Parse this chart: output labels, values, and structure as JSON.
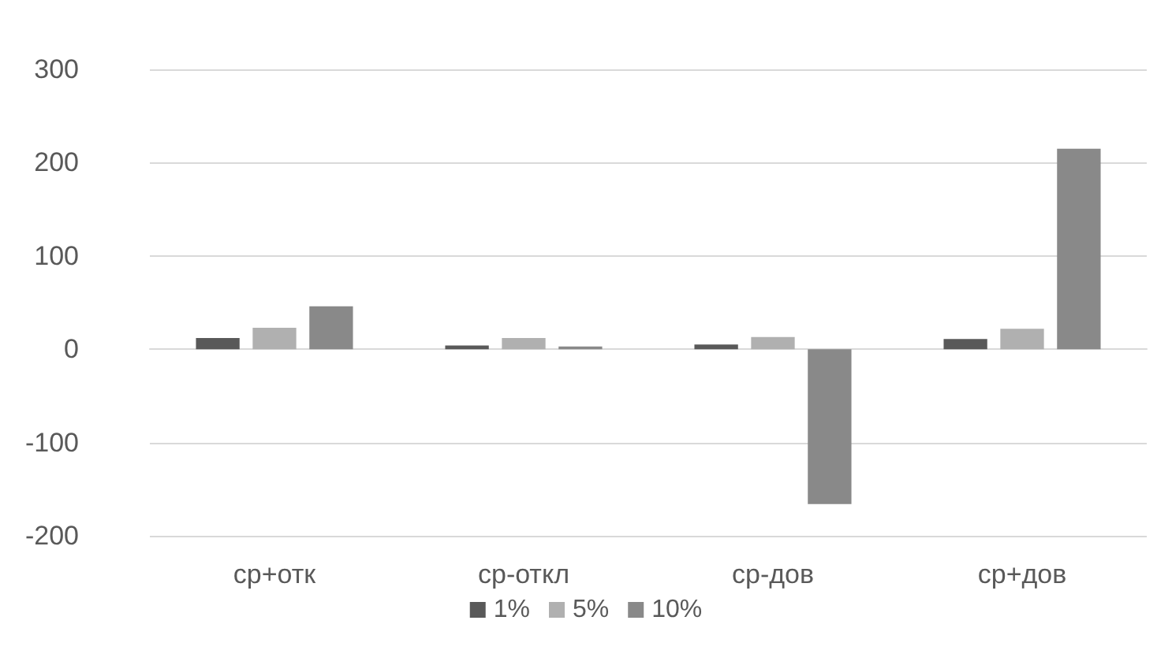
{
  "chart_data": {
    "type": "bar",
    "categories": [
      "ср+отк",
      "ср-откл",
      "ср-дов",
      "ср+дов"
    ],
    "series": [
      {
        "name": "1%",
        "color": "#595959",
        "values": [
          12,
          4,
          5,
          11
        ]
      },
      {
        "name": "5%",
        "color": "#b0b0b0",
        "values": [
          23,
          12,
          13,
          22
        ]
      },
      {
        "name": "10%",
        "color": "#898989",
        "values": [
          46,
          3,
          -166,
          215
        ]
      }
    ],
    "ylim": [
      -200,
      300
    ],
    "yticks": [
      -200,
      -100,
      0,
      100,
      200,
      300
    ],
    "grid": "y",
    "legend": "bottom"
  }
}
